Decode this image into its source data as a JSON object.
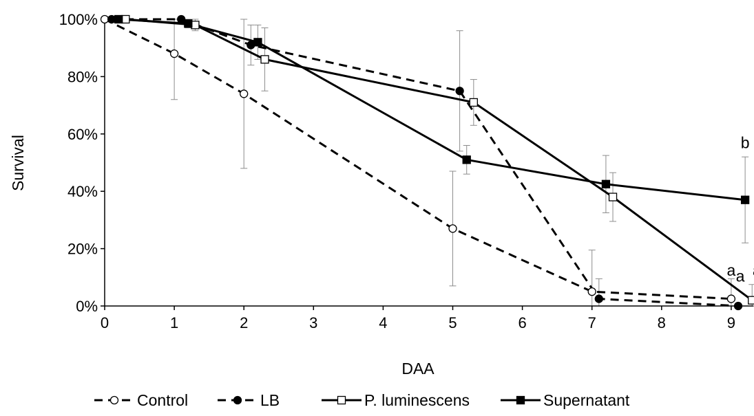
{
  "chart_data": {
    "type": "line",
    "xlabel": "DAA",
    "ylabel": "Survival",
    "xlim": [
      0,
      9.3
    ],
    "ylim": [
      0,
      100
    ],
    "x_ticks": [
      0,
      1,
      2,
      3,
      4,
      5,
      6,
      7,
      8,
      9
    ],
    "y_ticks": [
      {
        "value": 0,
        "label": "0%"
      },
      {
        "value": 20,
        "label": "20%"
      },
      {
        "value": 40,
        "label": "40%"
      },
      {
        "value": 60,
        "label": "60%"
      },
      {
        "value": 80,
        "label": "80%"
      },
      {
        "value": 100,
        "label": "100%"
      }
    ],
    "grid": false,
    "legend_position": "bottom",
    "series": [
      {
        "name": "Control",
        "line_style": "dashed",
        "marker": "circle-open",
        "color": "#000000",
        "points": [
          {
            "x": 0,
            "y": 100,
            "err": 0
          },
          {
            "x": 1,
            "y": 88,
            "err": 16
          },
          {
            "x": 2,
            "y": 74,
            "err": 26
          },
          {
            "x": 5,
            "y": 27,
            "err": 20
          },
          {
            "x": 7,
            "y": 5,
            "err": 14.5
          },
          {
            "x": 9,
            "y": 2.5,
            "err": 7
          }
        ]
      },
      {
        "name": "LB",
        "line_style": "dashed",
        "marker": "circle-filled",
        "color": "#000000",
        "points": [
          {
            "x": 0.1,
            "y": 100,
            "err": 0
          },
          {
            "x": 1.1,
            "y": 100,
            "err": 0
          },
          {
            "x": 2.1,
            "y": 91,
            "err": 7
          },
          {
            "x": 5.1,
            "y": 75,
            "err": 21
          },
          {
            "x": 7.1,
            "y": 2.5,
            "err": 7
          },
          {
            "x": 9.1,
            "y": 0,
            "err": 0
          }
        ]
      },
      {
        "name": "P. luminescens",
        "line_style": "solid",
        "marker": "square-open",
        "color": "#000000",
        "points": [
          {
            "x": 0.3,
            "y": 100,
            "err": 0
          },
          {
            "x": 1.3,
            "y": 98,
            "err": 2
          },
          {
            "x": 2.3,
            "y": 86,
            "err": 11
          },
          {
            "x": 5.3,
            "y": 71,
            "err": 8
          },
          {
            "x": 7.3,
            "y": 38,
            "err": 8.5
          },
          {
            "x": 9.3,
            "y": 2,
            "err": 5.5
          }
        ]
      },
      {
        "name": "Supernatant",
        "line_style": "solid",
        "marker": "square-filled",
        "color": "#000000",
        "points": [
          {
            "x": 0.2,
            "y": 100,
            "err": 0
          },
          {
            "x": 1.2,
            "y": 98.5,
            "err": 1.5
          },
          {
            "x": 2.2,
            "y": 92,
            "err": 6
          },
          {
            "x": 5.2,
            "y": 51,
            "err": 5
          },
          {
            "x": 7.2,
            "y": 42.5,
            "err": 10
          },
          {
            "x": 9.2,
            "y": 37,
            "err": 15
          }
        ]
      }
    ],
    "annotations": [
      {
        "text": "b",
        "x": 9.2,
        "y": 55
      },
      {
        "text": "a",
        "x": 9.0,
        "y": 10.5
      },
      {
        "text": "a",
        "x": 9.13,
        "y": 8.5
      },
      {
        "text": "a",
        "x": 9.37,
        "y": 10.5
      }
    ]
  }
}
